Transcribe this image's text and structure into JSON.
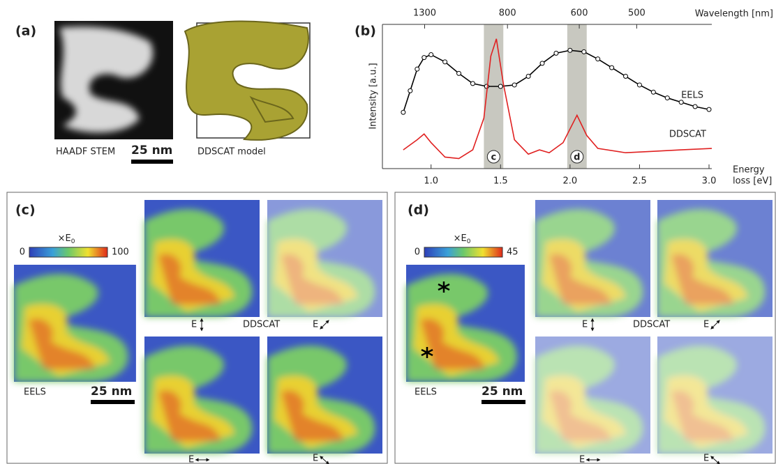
{
  "panel_a": {
    "label": "(a)",
    "stem_caption": "HAADF STEM",
    "scale": "25 nm",
    "model_caption": "DDSCAT model"
  },
  "chart_data": {
    "type": "line",
    "label": "(b)",
    "ylabel": "Intensity [a.u.]",
    "xlabel": [
      "Energy",
      "loss [eV]"
    ],
    "x2label": "Wavelength [nm]",
    "xlim": [
      0.65,
      3.02
    ],
    "ylim": [
      0,
      1
    ],
    "xticks": [
      {
        "value": 1,
        "label": "1.0"
      },
      1.5,
      {
        "value": 2,
        "label": "2.0"
      },
      2.5,
      {
        "value": 3,
        "label": "3.0"
      }
    ],
    "x2ticks": [
      1300,
      800,
      600,
      500
    ],
    "bands": [
      {
        "label": "c",
        "range": [
          1.38,
          1.52
        ]
      },
      {
        "label": "d",
        "range": [
          1.98,
          2.12
        ]
      }
    ],
    "series": [
      {
        "name": "EELS",
        "color": "#000000",
        "markers": true,
        "x": [
          0.8,
          0.85,
          0.9,
          0.95,
          1.0,
          1.1,
          1.2,
          1.3,
          1.4,
          1.5,
          1.6,
          1.7,
          1.8,
          1.9,
          2.0,
          2.1,
          2.2,
          2.3,
          2.4,
          2.5,
          2.6,
          2.7,
          2.8,
          2.9,
          3.0
        ],
        "values": [
          0.39,
          0.54,
          0.69,
          0.77,
          0.79,
          0.74,
          0.66,
          0.59,
          0.57,
          0.57,
          0.58,
          0.64,
          0.73,
          0.8,
          0.82,
          0.81,
          0.76,
          0.7,
          0.64,
          0.58,
          0.53,
          0.49,
          0.46,
          0.43,
          0.41
        ]
      },
      {
        "name": "DDSCAT",
        "color": "#e02020",
        "markers": false,
        "x": [
          0.8,
          0.9,
          0.95,
          1.0,
          1.1,
          1.2,
          1.3,
          1.38,
          1.43,
          1.47,
          1.52,
          1.6,
          1.7,
          1.78,
          1.85,
          1.95,
          2.05,
          2.12,
          2.2,
          2.4,
          2.6,
          2.8,
          3.02
        ],
        "values": [
          0.13,
          0.2,
          0.24,
          0.18,
          0.08,
          0.07,
          0.13,
          0.35,
          0.78,
          0.9,
          0.59,
          0.2,
          0.1,
          0.13,
          0.11,
          0.18,
          0.37,
          0.23,
          0.14,
          0.11,
          0.12,
          0.13,
          0.14
        ]
      }
    ]
  },
  "panel_c": {
    "label": "(c)",
    "colorbar": {
      "unit": "×E",
      "sub": "0",
      "min": 0,
      "max": 100
    },
    "eels": "EELS",
    "scale": "25 nm",
    "ddscat": "DDSCAT",
    "pol": [
      "E",
      "E",
      "E",
      "E"
    ]
  },
  "panel_d": {
    "label": "(d)",
    "colorbar": {
      "unit": "×E",
      "sub": "0",
      "min": 0,
      "max": 45
    },
    "eels": "EELS",
    "scale": "25 nm",
    "ddscat": "DDSCAT",
    "pol": [
      "E",
      "E",
      "E",
      "E"
    ]
  }
}
